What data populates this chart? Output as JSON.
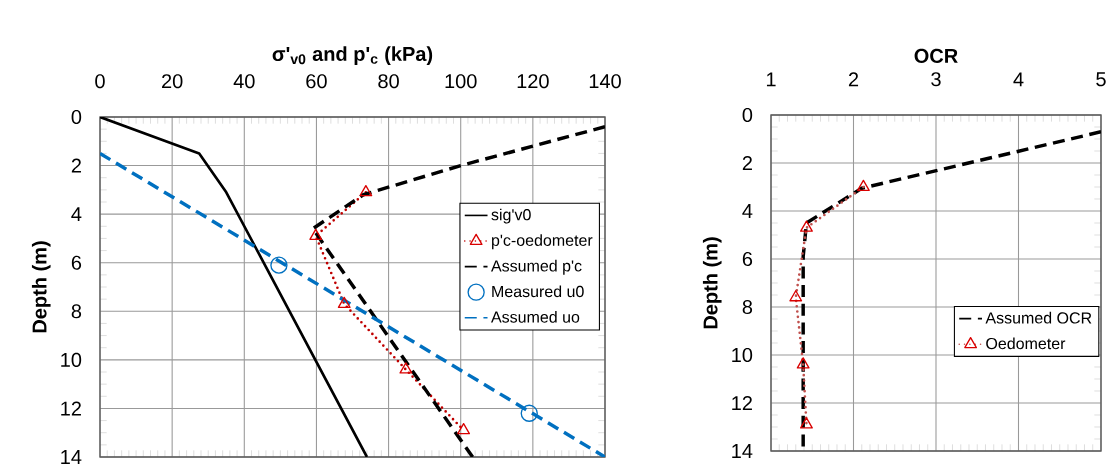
{
  "chart_data": [
    {
      "type": "line",
      "xlabel": "σ'$_{v0}$  and p'$_{c}$ (kPa)",
      "ylabel": "Depth (m)",
      "xlim": [
        0,
        140
      ],
      "xticks": [
        0,
        20,
        40,
        60,
        80,
        100,
        120,
        140
      ],
      "ylim": [
        14,
        0
      ],
      "yticks": [
        0,
        2,
        4,
        6,
        8,
        10,
        12,
        14
      ],
      "grid": true,
      "legend": "right",
      "series": [
        {
          "name": "sig'v0",
          "color": "#000000",
          "line_style": "solid",
          "marker": "none",
          "x": [
            0,
            27.5,
            35,
            74
          ],
          "values": [
            0,
            1.5,
            3.1,
            14
          ]
        },
        {
          "name": "p'c-oedometer",
          "color": "#c00000",
          "line_style": "dotted",
          "marker": "triangle",
          "x": [
            73.7,
            59.8,
            67.7,
            84.8,
            100.8
          ],
          "values": [
            3.1,
            4.9,
            7.7,
            10.4,
            12.9
          ]
        },
        {
          "name": "Assumed p'c",
          "color": "#000000",
          "line_style": "dashed",
          "marker": "none",
          "x": [
            140,
            100,
            73,
            59,
            103.3
          ],
          "values": [
            0.4,
            2.0,
            3.2,
            4.6,
            14
          ]
        },
        {
          "name": "Measured u0",
          "type": "scatter",
          "color": "#0070c0",
          "marker": "circle",
          "x": [
            49.6,
            119
          ],
          "values": [
            6.1,
            12.2
          ]
        },
        {
          "name": "Assumed uo",
          "color": "#0070c0",
          "line_style": "dashed",
          "marker": "none",
          "x": [
            0,
            140
          ],
          "values": [
            1.5,
            14
          ]
        }
      ]
    },
    {
      "type": "line",
      "xlabel": "OCR",
      "ylabel": "Depth (m)",
      "xlim": [
        1,
        5
      ],
      "xticks": [
        1,
        2,
        3,
        4,
        5
      ],
      "ylim": [
        14,
        0
      ],
      "yticks": [
        0,
        2,
        4,
        6,
        8,
        10,
        12,
        14
      ],
      "grid": true,
      "legend": "bottom right",
      "series": [
        {
          "name": "Assumed OCR",
          "color": "#000000",
          "line_style": "dashed",
          "marker": "none",
          "x": [
            5,
            2.1,
            1.43,
            1.39,
            1.39
          ],
          "values": [
            0.7,
            3.05,
            4.5,
            5.9,
            14
          ]
        },
        {
          "name": "Oedometer",
          "color": "#c0504d",
          "line_style": "dotted",
          "marker": "triangle",
          "x": [
            2.12,
            1.43,
            1.3,
            1.39,
            1.43
          ],
          "values": [
            3.0,
            4.7,
            7.6,
            10.4,
            12.9
          ]
        }
      ]
    }
  ]
}
